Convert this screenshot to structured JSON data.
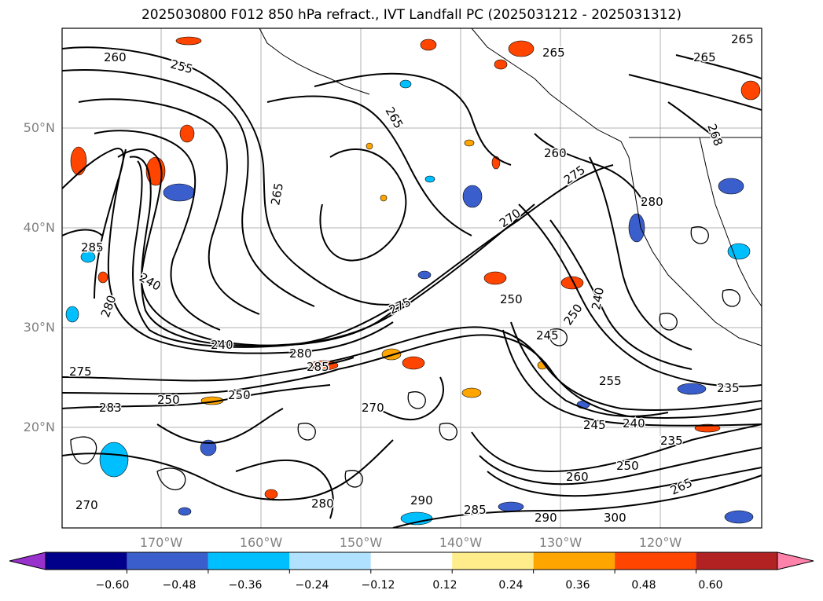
{
  "title": "2025030800 F012 850 hPa refract., IVT Landfall PC (2025031212 - 2025031312)",
  "map": {
    "lat_labels": [
      "50°N",
      "40°N",
      "30°N",
      "20°N"
    ],
    "lon_labels": [
      "170°W",
      "160°W",
      "150°W",
      "140°W",
      "130°W",
      "120°W"
    ],
    "contour_labels": [
      "260",
      "255",
      "265",
      "265",
      "265",
      "265",
      "265",
      "260",
      "275",
      "270",
      "250",
      "245",
      "250",
      "240",
      "255",
      "235",
      "235",
      "245",
      "240",
      "275",
      "280",
      "285",
      "275",
      "283",
      "250",
      "250",
      "270",
      "240",
      "280",
      "285",
      "240",
      "260",
      "250",
      "265",
      "290",
      "280",
      "290",
      "300",
      "285",
      "268",
      "280",
      "270"
    ]
  },
  "colorbar": {
    "ticks": [
      "−0.60",
      "−0.48",
      "−0.36",
      "−0.24",
      "−0.12",
      "0.12",
      "0.24",
      "0.36",
      "0.48",
      "0.60"
    ],
    "colors": [
      "#9932cc",
      "#00008b",
      "#3a5fcd",
      "#00bfff",
      "#b0e2ff",
      "#ffffff",
      "#ffec8b",
      "#ffa500",
      "#ff4500",
      "#b22222",
      "#ff82ab"
    ]
  }
}
